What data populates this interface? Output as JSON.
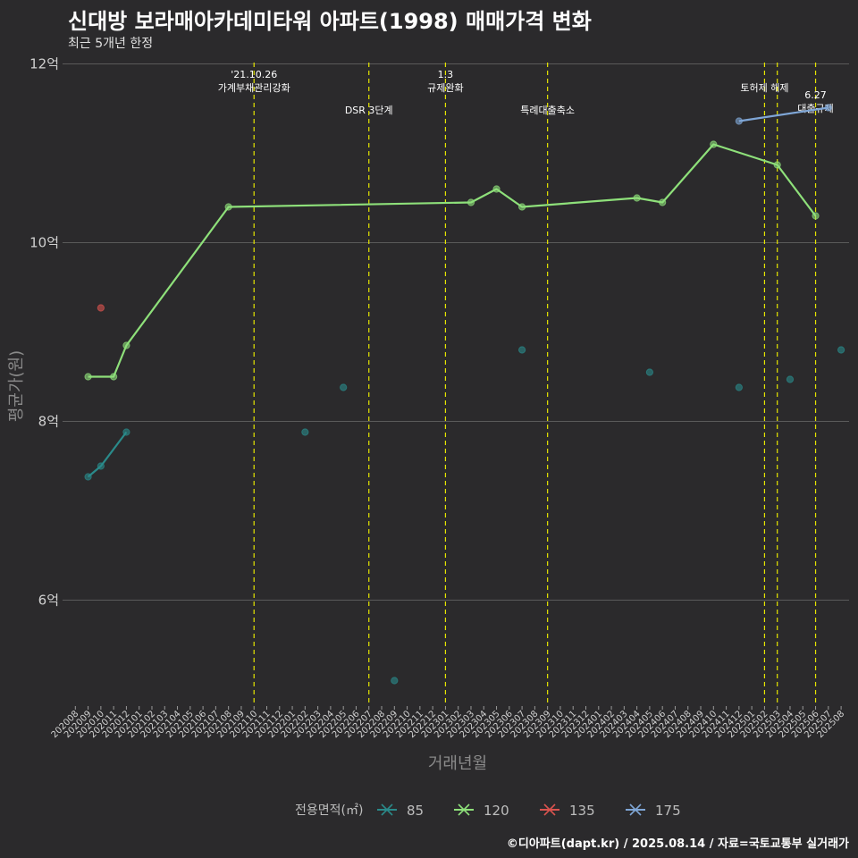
{
  "header": {
    "title": "신대방 보라매아카데미타워 아파트(1998) 매매가격 변화",
    "subtitle": "최근 5개년 한정"
  },
  "caption": "©디아파트(dapt.kr) / 2025.08.14 / 자료=국토교통부 실거래가",
  "colors": {
    "background": "#2b2a2c",
    "grid": "#5a5a5a",
    "policy_line": "#e6e600",
    "s85": "#2a8a8a",
    "s120": "#8ee07a",
    "s135": "#d9534f",
    "s175": "#7fa6d6"
  },
  "chart_data": {
    "type": "line",
    "title": "신대방 보라매아카데미타워 아파트(1998) 매매가격 변화",
    "subtitle": "최근 5개년 한정",
    "xlabel": "거래년월",
    "ylabel": "평균가(원)",
    "ylim": [
      4.8,
      12.0
    ],
    "yticks": [
      {
        "value": 6,
        "label": "6억"
      },
      {
        "value": 8,
        "label": "8억"
      },
      {
        "value": 10,
        "label": "10억"
      },
      {
        "value": 12,
        "label": "12억"
      }
    ],
    "categories": [
      "202008",
      "202009",
      "202010",
      "202011",
      "202012",
      "202101",
      "202102",
      "202103",
      "202104",
      "202105",
      "202106",
      "202107",
      "202108",
      "202109",
      "202110",
      "202111",
      "202112",
      "202201",
      "202202",
      "202203",
      "202204",
      "202205",
      "202206",
      "202207",
      "202208",
      "202209",
      "202210",
      "202211",
      "202212",
      "202301",
      "202302",
      "202303",
      "202304",
      "202305",
      "202306",
      "202307",
      "202308",
      "202309",
      "202310",
      "202311",
      "202312",
      "202401",
      "202402",
      "202403",
      "202404",
      "202405",
      "202406",
      "202407",
      "202408",
      "202409",
      "202410",
      "202411",
      "202412",
      "202501",
      "202502",
      "202503",
      "202504",
      "202505",
      "202506",
      "202507",
      "202508"
    ],
    "legend_title": "전용면적(㎡)",
    "series": [
      {
        "name": "85",
        "color": "#2a8a8a",
        "line": [
          [
            "202009",
            7.38
          ],
          [
            "202010",
            7.5
          ],
          [
            "202012",
            7.88
          ]
        ],
        "points": [
          [
            "202009",
            7.38
          ],
          [
            "202010",
            7.5
          ],
          [
            "202012",
            7.88
          ],
          [
            "202202",
            7.88
          ],
          [
            "202205",
            8.38
          ],
          [
            "202209",
            5.1
          ],
          [
            "202307",
            8.8
          ],
          [
            "202405",
            8.55
          ],
          [
            "202412",
            8.38
          ],
          [
            "202504",
            8.47
          ],
          [
            "202508",
            8.8
          ]
        ]
      },
      {
        "name": "120",
        "color": "#8ee07a",
        "line": [
          [
            "202009",
            8.5
          ],
          [
            "202011",
            8.5
          ],
          [
            "202012",
            8.85
          ],
          [
            "202108",
            10.4
          ],
          [
            "202303",
            10.45
          ],
          [
            "202305",
            10.6
          ],
          [
            "202307",
            10.4
          ],
          [
            "202404",
            10.5
          ],
          [
            "202406",
            10.45
          ],
          [
            "202410",
            11.1
          ],
          [
            "202503",
            10.87
          ],
          [
            "202506",
            10.3
          ]
        ],
        "points": [
          [
            "202009",
            8.5
          ],
          [
            "202011",
            8.5
          ],
          [
            "202012",
            8.85
          ],
          [
            "202108",
            10.4
          ],
          [
            "202303",
            10.45
          ],
          [
            "202305",
            10.6
          ],
          [
            "202307",
            10.4
          ],
          [
            "202404",
            10.5
          ],
          [
            "202406",
            10.45
          ],
          [
            "202410",
            11.1
          ],
          [
            "202503",
            10.87
          ],
          [
            "202506",
            10.3
          ]
        ]
      },
      {
        "name": "135",
        "color": "#d9534f",
        "line": [],
        "points": [
          [
            "202010",
            9.27
          ]
        ]
      },
      {
        "name": "175",
        "color": "#7fa6d6",
        "line": [
          [
            "202412",
            11.36
          ],
          [
            "202507",
            11.51
          ]
        ],
        "points": [
          [
            "202412",
            11.36
          ],
          [
            "202507",
            11.51
          ]
        ]
      }
    ],
    "policy_lines": [
      {
        "x": "202110",
        "label": "'21.10.26\n가계부채관리강화",
        "level": 0
      },
      {
        "x": "202207",
        "label": "DSR 3단계",
        "level": 1
      },
      {
        "x": "202301",
        "label": "1.3\n규제완화",
        "level": 0
      },
      {
        "x": "202309",
        "label": "특례대출축소",
        "level": 1
      },
      {
        "x": "202502",
        "label": "토허제 해제",
        "level": 2
      },
      {
        "x": "202503",
        "label": "",
        "level": 2
      },
      {
        "x": "202506",
        "label": "6.27\n대출규제",
        "level": 3
      }
    ]
  }
}
